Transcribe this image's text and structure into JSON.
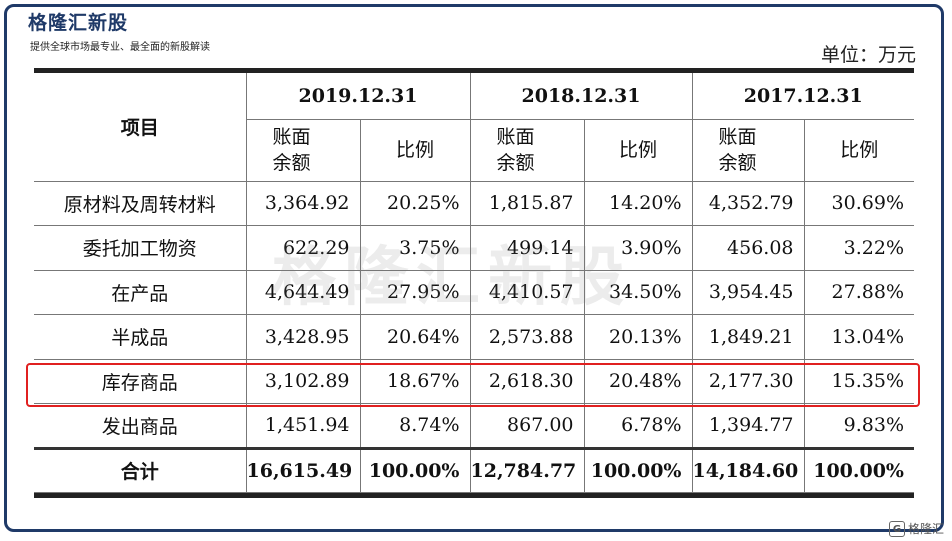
{
  "brand": {
    "title": "格隆汇新股",
    "subtitle": "提供全球市场最专业、最全面的新股解读",
    "logo_text": "格隆汇",
    "watermark": "格隆汇新股"
  },
  "unit_label": "单位：万元",
  "table": {
    "item_header": "项目",
    "periods": [
      "2019.12.31",
      "2018.12.31",
      "2017.12.31"
    ],
    "sub_headers": {
      "balance_line1": "账面",
      "balance_line2": "余额",
      "ratio": "比例"
    },
    "rows": [
      {
        "name": "原材料及周转材料",
        "cells": [
          "3,364.92",
          "20.25%",
          "1,815.87",
          "14.20%",
          "4,352.79",
          "30.69%"
        ]
      },
      {
        "name": "委托加工物资",
        "cells": [
          "622.29",
          "3.75%",
          "499.14",
          "3.90%",
          "456.08",
          "3.22%"
        ]
      },
      {
        "name": "在产品",
        "cells": [
          "4,644.49",
          "27.95%",
          "4,410.57",
          "34.50%",
          "3,954.45",
          "27.88%"
        ]
      },
      {
        "name": "半成品",
        "cells": [
          "3,428.95",
          "20.64%",
          "2,573.88",
          "20.13%",
          "1,849.21",
          "13.04%"
        ]
      },
      {
        "name": "库存商品",
        "cells": [
          "3,102.89",
          "18.67%",
          "2,618.30",
          "20.48%",
          "2,177.30",
          "15.35%"
        ]
      },
      {
        "name": "发出商品",
        "cells": [
          "1,451.94",
          "8.74%",
          "867.00",
          "6.78%",
          "1,394.77",
          "9.83%"
        ]
      }
    ],
    "total": {
      "name": "合计",
      "cells": [
        "16,615.49",
        "100.00%",
        "12,784.77",
        "100.00%",
        "14,184.60",
        "100.00%"
      ]
    }
  },
  "colors": {
    "frame": "#1f3a68",
    "highlight": "#e02020"
  }
}
